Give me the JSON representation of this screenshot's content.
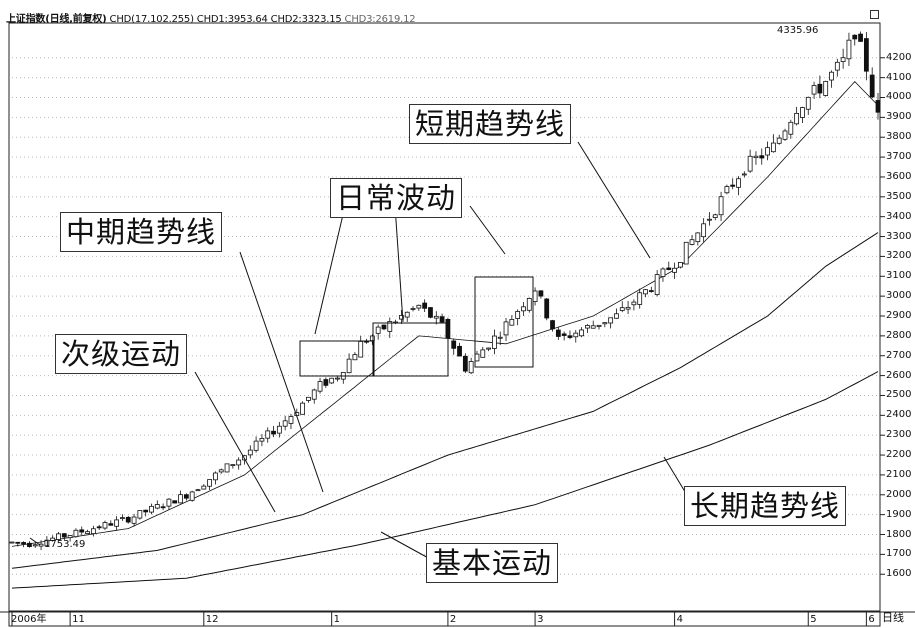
{
  "header": {
    "title": "上证指数(日线,前复权)",
    "items": [
      "CHD(17.102.255)",
      "CHD1:3953.64",
      "CHD2:3323.15"
    ],
    "item_faded": "CHD3:2619.12"
  },
  "annotations": {
    "short_trend": "短期趋势线",
    "daily_wave": "日常波动",
    "mid_trend": "中期趋势线",
    "secondary": "次级运动",
    "long_trend": "长期趋势线",
    "primary": "基本运动"
  },
  "labels": {
    "high": "4335.96",
    "low": "1753.49"
  },
  "axis": {
    "unit": "日线"
  },
  "chart_data": {
    "type": "candlestick",
    "title": "上证指数(日线,前复权)",
    "y_ticks": [
      1600,
      1700,
      1800,
      1900,
      2000,
      2100,
      2200,
      2300,
      2400,
      2500,
      2600,
      2700,
      2800,
      2900,
      3000,
      3100,
      3200,
      3300,
      3400,
      3500,
      3600,
      3700,
      3800,
      3900,
      4000,
      4100,
      4200
    ],
    "ylim": [
      1420,
      4370
    ],
    "x_tick_labels": [
      "2006年",
      "11",
      "12",
      "1",
      "2",
      "3",
      "4",
      "5",
      "6"
    ],
    "n_days": 150,
    "month_start_index": [
      0,
      10,
      33,
      55,
      75,
      90,
      114,
      137,
      147
    ],
    "price_anchors": [
      [
        0,
        1760
      ],
      [
        3,
        1753.49
      ],
      [
        10,
        1800
      ],
      [
        20,
        1880
      ],
      [
        30,
        2000
      ],
      [
        40,
        2200
      ],
      [
        48,
        2400
      ],
      [
        53,
        2550
      ],
      [
        56,
        2600
      ],
      [
        60,
        2760
      ],
      [
        65,
        2860
      ],
      [
        70,
        2950
      ],
      [
        74,
        2850
      ],
      [
        78,
        2640
      ],
      [
        80,
        2700
      ],
      [
        84,
        2820
      ],
      [
        90,
        3040
      ],
      [
        94,
        2780
      ],
      [
        98,
        2830
      ],
      [
        104,
        2900
      ],
      [
        110,
        3050
      ],
      [
        115,
        3200
      ],
      [
        120,
        3400
      ],
      [
        126,
        3650
      ],
      [
        131,
        3750
      ],
      [
        135,
        3950
      ],
      [
        139,
        4050
      ],
      [
        143,
        4180
      ],
      [
        145,
        4335.96
      ],
      [
        147,
        4150
      ],
      [
        149,
        3900
      ]
    ],
    "series": [
      {
        "name": "CHD1",
        "last_value": 3953.64,
        "role": "短期趋势线",
        "anchors": [
          [
            0,
            1740
          ],
          [
            20,
            1830
          ],
          [
            40,
            2100
          ],
          [
            55,
            2450
          ],
          [
            70,
            2800
          ],
          [
            85,
            2760
          ],
          [
            100,
            2900
          ],
          [
            115,
            3150
          ],
          [
            130,
            3600
          ],
          [
            145,
            4080
          ],
          [
            149,
            3960
          ]
        ]
      },
      {
        "name": "CHD2",
        "last_value": 3323.15,
        "role": "中期趋势线",
        "anchors": [
          [
            0,
            1630
          ],
          [
            25,
            1720
          ],
          [
            50,
            1900
          ],
          [
            75,
            2200
          ],
          [
            100,
            2420
          ],
          [
            115,
            2640
          ],
          [
            130,
            2900
          ],
          [
            140,
            3150
          ],
          [
            149,
            3320
          ]
        ]
      },
      {
        "name": "CHD3",
        "last_value": 2619.12,
        "role": "长期趋势线",
        "anchors": [
          [
            0,
            1530
          ],
          [
            30,
            1580
          ],
          [
            60,
            1750
          ],
          [
            90,
            1950
          ],
          [
            120,
            2250
          ],
          [
            140,
            2480
          ],
          [
            149,
            2620
          ]
        ]
      }
    ],
    "grid": "horizontal dotted"
  }
}
